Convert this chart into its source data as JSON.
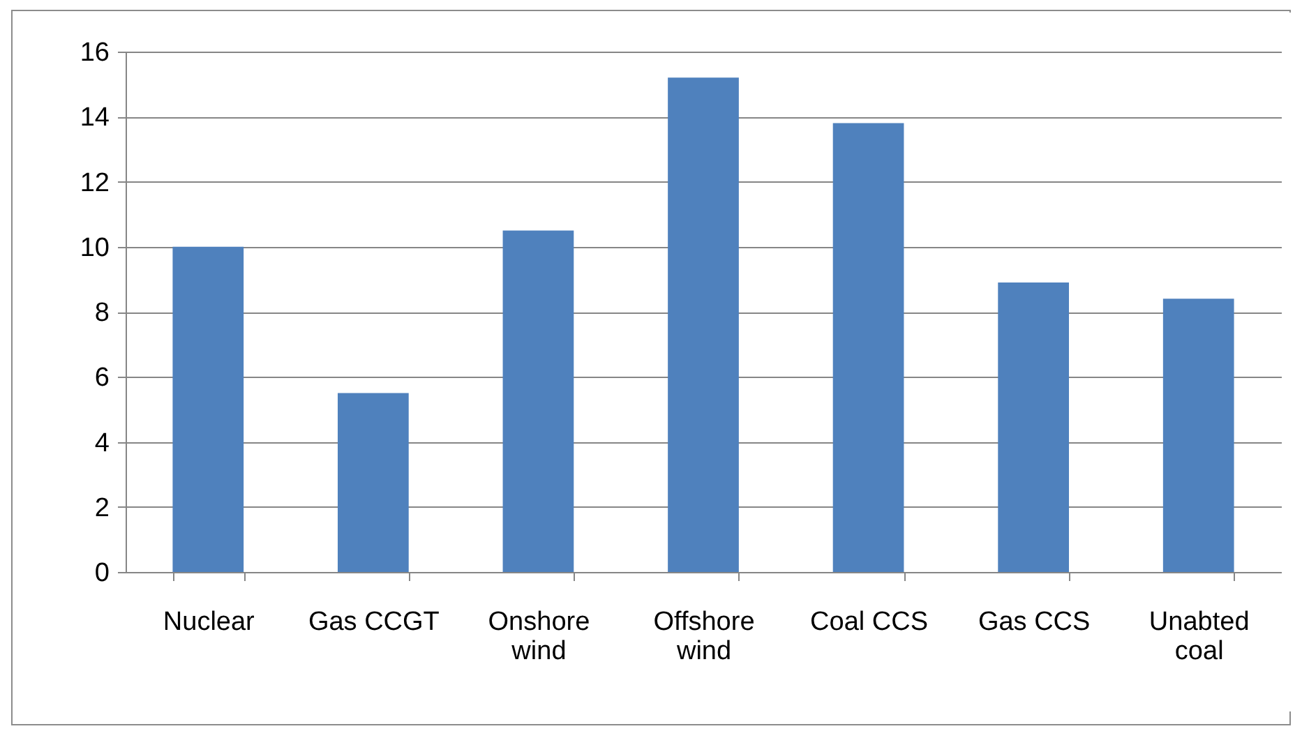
{
  "chart_data": {
    "type": "bar",
    "categories": [
      "Nuclear",
      "Gas CCGT",
      "Onshore wind",
      "Offshore wind",
      "Coal CCS",
      "Gas CCS",
      "Unabted coal"
    ],
    "values": [
      10.0,
      5.5,
      10.5,
      15.2,
      13.8,
      8.9,
      8.4
    ],
    "color": "#4f81bd",
    "ylim": [
      0,
      16
    ],
    "yticks": [
      0,
      2,
      4,
      6,
      8,
      10,
      12,
      14,
      16
    ],
    "grid": "y"
  }
}
